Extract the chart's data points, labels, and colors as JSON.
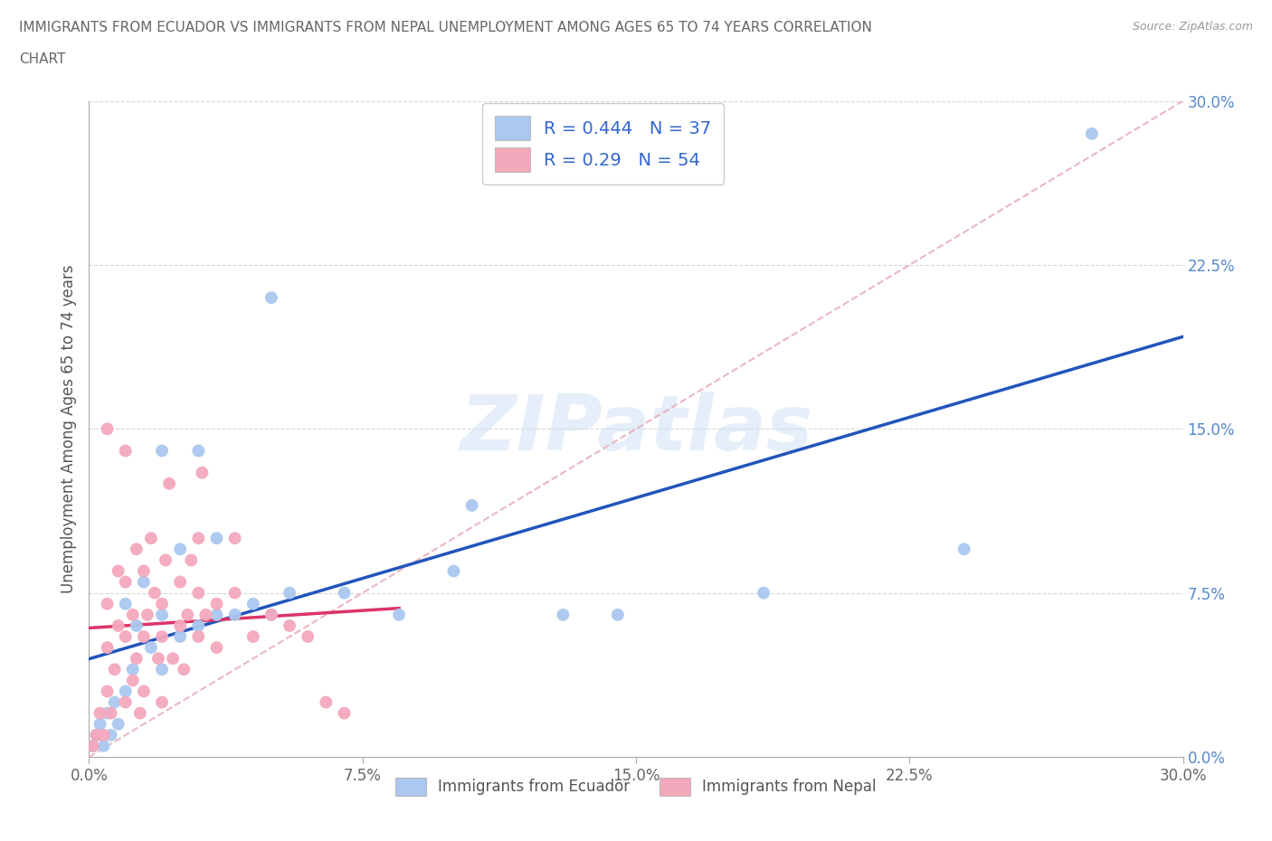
{
  "title_line1": "IMMIGRANTS FROM ECUADOR VS IMMIGRANTS FROM NEPAL UNEMPLOYMENT AMONG AGES 65 TO 74 YEARS CORRELATION",
  "title_line2": "CHART",
  "source": "Source: ZipAtlas.com",
  "ylabel": "Unemployment Among Ages 65 to 74 years",
  "xlim": [
    0.0,
    0.3
  ],
  "ylim": [
    0.0,
    0.3
  ],
  "xticks": [
    0.0,
    0.075,
    0.15,
    0.225,
    0.3
  ],
  "yticks": [
    0.0,
    0.075,
    0.15,
    0.225,
    0.3
  ],
  "xticklabels": [
    "0.0%",
    "7.5%",
    "15.0%",
    "22.5%",
    "30.0%"
  ],
  "yticklabels": [
    "0.0%",
    "7.5%",
    "15.0%",
    "22.5%",
    "30.0%"
  ],
  "ecuador_color": "#aac8f0",
  "nepal_color": "#f4a8bc",
  "ecuador_line_color": "#2255bb",
  "nepal_line_color": "#dd3366",
  "ref_line_color": "#ddaaaa",
  "R_ecuador": 0.444,
  "N_ecuador": 37,
  "R_nepal": 0.29,
  "N_nepal": 54,
  "ecuador_scatter": [
    [
      0.001,
      0.005
    ],
    [
      0.002,
      0.01
    ],
    [
      0.003,
      0.015
    ],
    [
      0.004,
      0.005
    ],
    [
      0.005,
      0.02
    ],
    [
      0.006,
      0.01
    ],
    [
      0.007,
      0.025
    ],
    [
      0.008,
      0.015
    ],
    [
      0.01,
      0.03
    ],
    [
      0.01,
      0.07
    ],
    [
      0.012,
      0.04
    ],
    [
      0.013,
      0.06
    ],
    [
      0.015,
      0.08
    ],
    [
      0.017,
      0.05
    ],
    [
      0.02,
      0.04
    ],
    [
      0.02,
      0.065
    ],
    [
      0.02,
      0.14
    ],
    [
      0.025,
      0.055
    ],
    [
      0.025,
      0.095
    ],
    [
      0.03,
      0.06
    ],
    [
      0.03,
      0.14
    ],
    [
      0.035,
      0.065
    ],
    [
      0.035,
      0.1
    ],
    [
      0.04,
      0.065
    ],
    [
      0.045,
      0.07
    ],
    [
      0.05,
      0.065
    ],
    [
      0.05,
      0.21
    ],
    [
      0.055,
      0.075
    ],
    [
      0.07,
      0.075
    ],
    [
      0.085,
      0.065
    ],
    [
      0.1,
      0.085
    ],
    [
      0.105,
      0.115
    ],
    [
      0.13,
      0.065
    ],
    [
      0.145,
      0.065
    ],
    [
      0.185,
      0.075
    ],
    [
      0.24,
      0.095
    ],
    [
      0.275,
      0.285
    ]
  ],
  "nepal_scatter": [
    [
      0.001,
      0.005
    ],
    [
      0.002,
      0.01
    ],
    [
      0.003,
      0.02
    ],
    [
      0.004,
      0.01
    ],
    [
      0.005,
      0.03
    ],
    [
      0.005,
      0.05
    ],
    [
      0.005,
      0.07
    ],
    [
      0.005,
      0.15
    ],
    [
      0.006,
      0.02
    ],
    [
      0.007,
      0.04
    ],
    [
      0.008,
      0.06
    ],
    [
      0.008,
      0.085
    ],
    [
      0.01,
      0.025
    ],
    [
      0.01,
      0.055
    ],
    [
      0.01,
      0.08
    ],
    [
      0.01,
      0.14
    ],
    [
      0.012,
      0.035
    ],
    [
      0.012,
      0.065
    ],
    [
      0.013,
      0.045
    ],
    [
      0.013,
      0.095
    ],
    [
      0.014,
      0.02
    ],
    [
      0.015,
      0.03
    ],
    [
      0.015,
      0.055
    ],
    [
      0.015,
      0.085
    ],
    [
      0.016,
      0.065
    ],
    [
      0.017,
      0.1
    ],
    [
      0.018,
      0.075
    ],
    [
      0.019,
      0.045
    ],
    [
      0.02,
      0.025
    ],
    [
      0.02,
      0.055
    ],
    [
      0.02,
      0.07
    ],
    [
      0.021,
      0.09
    ],
    [
      0.022,
      0.125
    ],
    [
      0.023,
      0.045
    ],
    [
      0.025,
      0.06
    ],
    [
      0.025,
      0.08
    ],
    [
      0.026,
      0.04
    ],
    [
      0.027,
      0.065
    ],
    [
      0.028,
      0.09
    ],
    [
      0.03,
      0.055
    ],
    [
      0.03,
      0.075
    ],
    [
      0.03,
      0.1
    ],
    [
      0.031,
      0.13
    ],
    [
      0.032,
      0.065
    ],
    [
      0.035,
      0.05
    ],
    [
      0.035,
      0.07
    ],
    [
      0.04,
      0.075
    ],
    [
      0.04,
      0.1
    ],
    [
      0.045,
      0.055
    ],
    [
      0.05,
      0.065
    ],
    [
      0.055,
      0.06
    ],
    [
      0.06,
      0.055
    ],
    [
      0.065,
      0.025
    ],
    [
      0.07,
      0.02
    ]
  ],
  "watermark": "ZIPatlas",
  "legend_ecuad": "Immigrants from Ecuador",
  "legend_nepal": "Immigrants from Nepal"
}
